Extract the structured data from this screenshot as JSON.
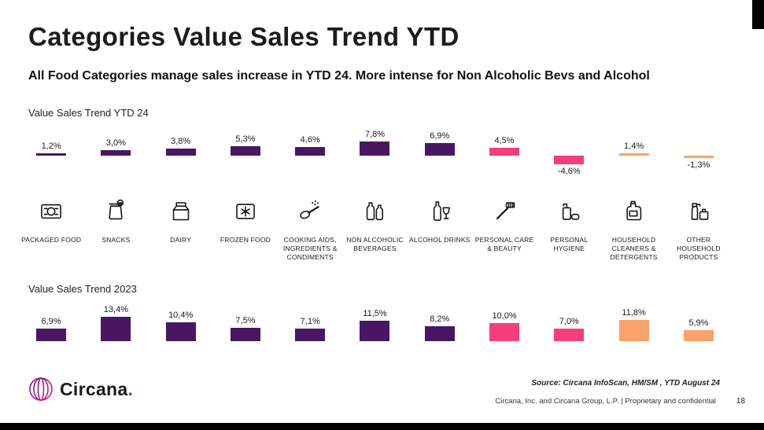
{
  "page": {
    "title": "Categories Value Sales Trend YTD",
    "subtitle": "All Food Categories manage sales increase in YTD 24. More intense for Non Alcoholic Bevs and Alcohol",
    "footer": {
      "logo_text": "Circana",
      "logo_dot": ".",
      "source_line": "Source: Circana InfoScan, HM/SM , YTD August 24",
      "confidential_line": "Circana, Inc. and Circana Group, L.P. |  Proprietary and confidential",
      "page_number": "18"
    }
  },
  "colors": {
    "purple": "#491663",
    "pink": "#F43F7B",
    "orange": "#F9A269"
  },
  "categories": [
    {
      "label": "PACKAGED FOOD",
      "icon": "packaged-food-icon",
      "color": "#491663"
    },
    {
      "label": "SNACKS",
      "icon": "snacks-icon",
      "color": "#491663"
    },
    {
      "label": "DAIRY",
      "icon": "dairy-icon",
      "color": "#491663"
    },
    {
      "label": "FROZEN FOOD",
      "icon": "frozen-food-icon",
      "color": "#491663"
    },
    {
      "label": "COOKING AIDS, INGREDIENTS & CONDIMENTS",
      "icon": "cooking-aids-icon",
      "color": "#491663"
    },
    {
      "label": "NON ALCOHOLIC BEVERAGES",
      "icon": "non-alcoholic-beverages-icon",
      "color": "#491663"
    },
    {
      "label": "ALCOHOL DRINKS",
      "icon": "alcohol-drinks-icon",
      "color": "#491663"
    },
    {
      "label": "PERSONAL CARE & BEAUTY",
      "icon": "personal-care-beauty-icon",
      "color": "#F43F7B"
    },
    {
      "label": "PERSONAL HYGIENE",
      "icon": "personal-hygiene-icon",
      "color": "#F43F7B"
    },
    {
      "label": "HOUSEHOLD CLEANERS & DETERGENTS",
      "icon": "household-cleaners-icon",
      "color": "#F9A269"
    },
    {
      "label": "OTHER HOUSEHOLD PRODUCTS",
      "icon": "other-household-icon",
      "color": "#F9A269"
    }
  ],
  "chart_data": [
    {
      "type": "bar",
      "title": "Value Sales Trend YTD 24",
      "categories": [
        "PACKAGED FOOD",
        "SNACKS",
        "DAIRY",
        "FROZEN FOOD",
        "COOKING AIDS, INGREDIENTS & CONDIMENTS",
        "NON ALCOHOLIC BEVERAGES",
        "ALCOHOL DRINKS",
        "PERSONAL CARE & BEAUTY",
        "PERSONAL HYGIENE",
        "HOUSEHOLD CLEANERS & DETERGENTS",
        "OTHER HOUSEHOLD PRODUCTS"
      ],
      "values": [
        1.2,
        3.0,
        3.8,
        5.3,
        4.6,
        7.8,
        6.9,
        4.5,
        -4.6,
        1.4,
        -1.3
      ],
      "value_labels": [
        "1,2%",
        "3,0%",
        "3,8%",
        "5,3%",
        "4,6%",
        "7,8%",
        "6,9%",
        "4,5%",
        "-4,6%",
        "1,4%",
        "-1,3%"
      ],
      "unit": "%",
      "labels_position": "outside-bar-end",
      "axes_visible": false,
      "grid": false
    },
    {
      "type": "bar",
      "title": "Value Sales Trend 2023",
      "categories": [
        "PACKAGED FOOD",
        "SNACKS",
        "DAIRY",
        "FROZEN FOOD",
        "COOKING AIDS, INGREDIENTS & CONDIMENTS",
        "NON ALCOHOLIC BEVERAGES",
        "ALCOHOL DRINKS",
        "PERSONAL CARE & BEAUTY",
        "PERSONAL HYGIENE",
        "HOUSEHOLD CLEANERS & DETERGENTS",
        "OTHER HOUSEHOLD PRODUCTS"
      ],
      "values": [
        6.9,
        13.4,
        10.4,
        7.5,
        7.1,
        11.5,
        8.2,
        10.0,
        7.0,
        11.8,
        5.9
      ],
      "value_labels": [
        "6,9%",
        "13,4%",
        "10,4%",
        "7,5%",
        "7,1%",
        "11,5%",
        "8,2%",
        "10,0%",
        "7,0%",
        "11,8%",
        "5,9%"
      ],
      "unit": "%",
      "labels_position": "outside-bar-end",
      "axes_visible": false,
      "grid": false
    }
  ]
}
